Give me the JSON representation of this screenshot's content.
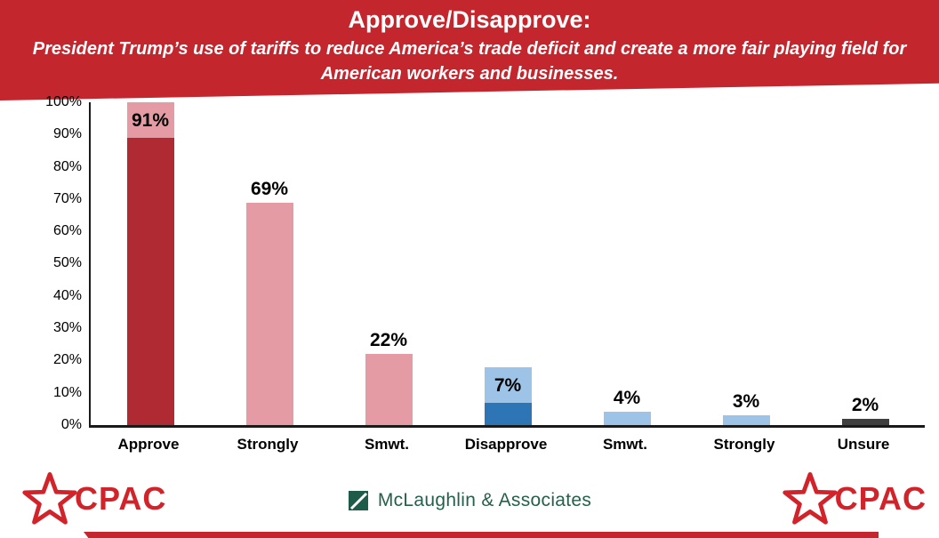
{
  "header": {
    "title": "Approve/Disapprove:",
    "subtitle": "President Trump’s use of tariffs to reduce America’s trade deficit and create a more fair playing field for American workers and businesses.",
    "background_color": "#C4262E",
    "text_color": "#FFFFFF"
  },
  "chart_data": {
    "type": "bar",
    "title": "Approve/Disapprove:",
    "subtitle": "President Trump’s use of tariffs to reduce America’s trade deficit and create a more fair playing field for American workers and businesses.",
    "categories": [
      "Approve",
      "Strongly",
      "Smwt.",
      "Disapprove",
      "Smwt.",
      "Strongly",
      "Unsure"
    ],
    "values": [
      91,
      69,
      22,
      7,
      4,
      3,
      2
    ],
    "value_labels": [
      "91%",
      "69%",
      "22%",
      "7%",
      "4%",
      "3%",
      "2%"
    ],
    "bar_colors": [
      "#B02A33",
      "#E59BA4",
      "#E59BA4",
      "#2E75B6",
      "#9DC3E6",
      "#9DC3E6",
      "#3F3F3F"
    ],
    "label_box_colors": [
      "#E59BA4",
      "",
      "",
      "#9DC3E6",
      "",
      "",
      ""
    ],
    "xlabel": "",
    "ylabel": "",
    "ylim": [
      0,
      100
    ],
    "ytick_labels": [
      "100%",
      "90%",
      "80%",
      "70%",
      "60%",
      "50%",
      "40%",
      "30%",
      "20%",
      "10%",
      "0%"
    ],
    "grid": false,
    "legend": "none"
  },
  "footer": {
    "cpac_label_left": "CPAC",
    "cpac_label_right": "CPAC",
    "brand": "McLaughlin & Associates",
    "cpac_color": "#D2232A",
    "brand_color": "#26604C"
  }
}
